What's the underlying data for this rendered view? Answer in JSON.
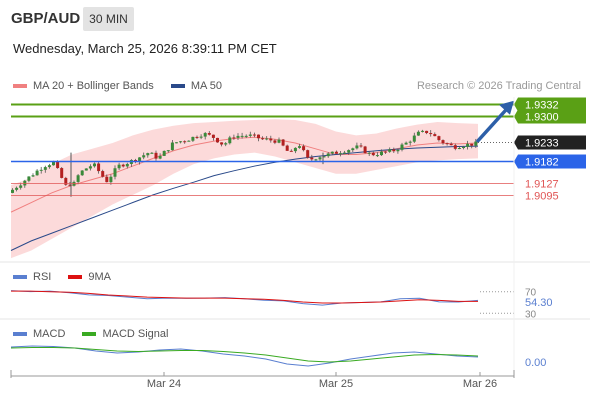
{
  "header": {
    "symbol": "GBP/AUD",
    "timeframe": "30 MIN",
    "datetime": "Wednesday, March 25, 2026 8:39:11 PM CET"
  },
  "legend_main": [
    {
      "label": "MA 20 + Bollinger Bands",
      "color": "#f08080"
    },
    {
      "label": "MA 50",
      "color": "#2a4a8a"
    }
  ],
  "research": "Research © 2026 Trading Central",
  "legend_rsi": [
    {
      "label": "RSI",
      "color": "#5a7fd0"
    },
    {
      "label": "9MA",
      "color": "#dd1111"
    }
  ],
  "legend_macd": [
    {
      "label": "MACD",
      "color": "#5a7fd0"
    },
    {
      "label": "MACD Signal",
      "color": "#3aaa22"
    }
  ],
  "colors": {
    "target": "#5aa015",
    "current": "#222222",
    "pivot": "#2b64e8",
    "support": "#e05555",
    "arrow": "#2d5fa8"
  },
  "chart_data": [
    {
      "type": "candlestick",
      "x_labels": [
        "Mar 24",
        "Mar 25",
        "Mar 26"
      ],
      "ylim": [
        1.892,
        1.935
      ],
      "levels": [
        {
          "value": 1.9332,
          "label": "1.9332",
          "kind": "target"
        },
        {
          "value": 1.93,
          "label": "1.9300",
          "kind": "target"
        },
        {
          "value": 1.9233,
          "label": "1.9233",
          "kind": "current"
        },
        {
          "value": 1.9182,
          "label": "1.9182",
          "kind": "pivot"
        },
        {
          "value": 1.9127,
          "label": "1.9127",
          "kind": "support"
        },
        {
          "value": 1.9095,
          "label": "1.9095",
          "kind": "support"
        }
      ],
      "ma50": [
        1.895,
        1.8975,
        1.8995,
        1.9015,
        1.9035,
        1.9055,
        1.9075,
        1.9095,
        1.9112,
        1.9128,
        1.9145,
        1.9158,
        1.917,
        1.918,
        1.9188,
        1.9195,
        1.92,
        1.9205,
        1.921,
        1.9214,
        1.9217,
        1.9219,
        1.9221,
        1.9222
      ],
      "ma20": [
        1.905,
        1.9075,
        1.91,
        1.912,
        1.9135,
        1.915,
        1.917,
        1.919,
        1.921,
        1.9225,
        1.9235,
        1.9242,
        1.9245,
        1.924,
        1.923,
        1.9215,
        1.92,
        1.92,
        1.9205,
        1.9215,
        1.9225,
        1.923,
        1.9228,
        1.923
      ],
      "bb_upper": [
        1.912,
        1.914,
        1.9175,
        1.92,
        1.9215,
        1.923,
        1.925,
        1.9265,
        1.9275,
        1.9282,
        1.9285,
        1.9288,
        1.929,
        1.9292,
        1.929,
        1.928,
        1.926,
        1.925,
        1.9255,
        1.9268,
        1.9278,
        1.9285,
        1.9282,
        1.928
      ],
      "bb_lower": [
        1.893,
        1.895,
        1.898,
        1.901,
        1.904,
        1.907,
        1.9095,
        1.912,
        1.915,
        1.9175,
        1.919,
        1.92,
        1.9205,
        1.9195,
        1.918,
        1.9165,
        1.915,
        1.915,
        1.916,
        1.917,
        1.918,
        1.9185,
        1.9188,
        1.919
      ]
    },
    {
      "type": "line",
      "title": "RSI",
      "ylim": [
        25,
        75
      ],
      "ticks": [
        70,
        30
      ],
      "last_value": "54.30",
      "rsi": [
        72,
        71,
        70,
        68,
        65,
        62,
        60,
        58,
        57,
        58,
        59,
        58,
        57,
        55,
        52,
        48,
        46,
        48,
        50,
        52,
        56,
        58,
        52,
        50,
        54
      ],
      "ma9": [
        71,
        71,
        70,
        69,
        67,
        64,
        62,
        60,
        59,
        58,
        58,
        58,
        57,
        56,
        54,
        51,
        49,
        49,
        50,
        51,
        53,
        55,
        54,
        52,
        52
      ]
    },
    {
      "type": "line",
      "title": "MACD",
      "ylim": [
        -0.003,
        0.003
      ],
      "ticks": [
        0
      ],
      "last_value": "0.00",
      "macd": [
        0.002,
        0.0022,
        0.0021,
        0.0018,
        0.0012,
        0.0008,
        0.001,
        0.0014,
        0.0016,
        0.0012,
        0.0006,
        0.0002,
        -0.0004,
        -0.0014,
        -0.0018,
        -0.0012,
        -0.0004,
        0.0002,
        0.0008,
        0.001,
        0.0006,
        0.0002,
        0.0
      ],
      "signal": [
        0.0018,
        0.0019,
        0.0019,
        0.0018,
        0.0015,
        0.0012,
        0.0011,
        0.0012,
        0.0013,
        0.0013,
        0.0011,
        0.0008,
        0.0004,
        -0.0002,
        -0.0008,
        -0.001,
        -0.0008,
        -0.0004,
        0.0,
        0.0004,
        0.0005,
        0.0004,
        0.0002
      ]
    }
  ]
}
